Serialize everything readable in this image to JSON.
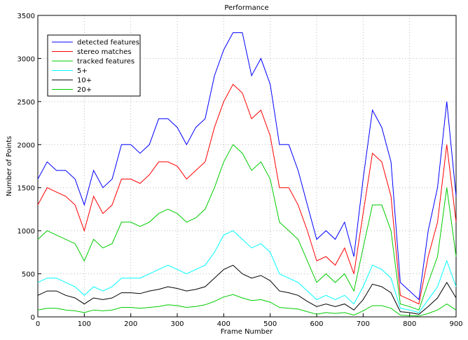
{
  "chart_data": {
    "type": "line",
    "title": "Performance",
    "x_label": "Frame Number",
    "y_label": "Number of Points",
    "x": [
      0,
      20,
      40,
      60,
      80,
      100,
      120,
      140,
      160,
      180,
      200,
      220,
      240,
      260,
      280,
      300,
      320,
      340,
      360,
      380,
      400,
      420,
      440,
      460,
      480,
      500,
      520,
      540,
      560,
      580,
      600,
      620,
      640,
      660,
      680,
      700,
      720,
      740,
      760,
      780,
      800,
      820,
      840,
      860,
      880,
      900
    ],
    "series": [
      {
        "name": "detected features",
        "color": "#0000ff",
        "values": [
          1600,
          1800,
          1700,
          1700,
          1600,
          1300,
          1700,
          1500,
          1600,
          2000,
          2000,
          1900,
          2000,
          2300,
          2300,
          2200,
          2000,
          2200,
          2300,
          2800,
          3100,
          3300,
          3300,
          2800,
          3000,
          2700,
          2000,
          2000,
          1700,
          1300,
          900,
          1000,
          900,
          1100,
          700,
          1600,
          2400,
          2200,
          1800,
          400,
          300,
          200,
          1000,
          1500,
          2500,
          1400
        ]
      },
      {
        "name": "stereo matches",
        "color": "#ff0000",
        "values": [
          1300,
          1500,
          1450,
          1400,
          1300,
          1000,
          1400,
          1200,
          1300,
          1600,
          1600,
          1550,
          1650,
          1800,
          1800,
          1750,
          1600,
          1700,
          1800,
          2200,
          2500,
          2700,
          2600,
          2300,
          2400,
          2100,
          1500,
          1500,
          1300,
          1000,
          650,
          700,
          600,
          800,
          500,
          1200,
          1900,
          1800,
          1400,
          250,
          200,
          150,
          700,
          1100,
          2000,
          1100
        ]
      },
      {
        "name": "tracked features",
        "color": "#00cc00",
        "values": [
          900,
          1000,
          950,
          900,
          850,
          650,
          900,
          800,
          850,
          1100,
          1100,
          1050,
          1100,
          1200,
          1250,
          1200,
          1100,
          1150,
          1250,
          1500,
          1800,
          2000,
          1900,
          1700,
          1800,
          1600,
          1100,
          1000,
          900,
          650,
          400,
          500,
          400,
          500,
          300,
          800,
          1300,
          1300,
          1000,
          150,
          120,
          80,
          400,
          700,
          1500,
          700
        ]
      },
      {
        "name": "5+",
        "color": "#00ffff",
        "values": [
          400,
          450,
          450,
          400,
          350,
          250,
          350,
          300,
          350,
          450,
          450,
          450,
          500,
          550,
          600,
          550,
          500,
          550,
          600,
          750,
          950,
          1000,
          900,
          800,
          850,
          750,
          500,
          450,
          400,
          300,
          200,
          250,
          200,
          250,
          150,
          350,
          600,
          550,
          450,
          100,
          80,
          50,
          200,
          350,
          650,
          350
        ]
      },
      {
        "name": "10+",
        "color": "#000000",
        "values": [
          250,
          300,
          300,
          250,
          220,
          150,
          220,
          200,
          220,
          280,
          280,
          270,
          300,
          320,
          350,
          330,
          300,
          320,
          350,
          450,
          550,
          600,
          500,
          450,
          480,
          420,
          300,
          280,
          250,
          180,
          120,
          150,
          120,
          150,
          80,
          200,
          380,
          350,
          280,
          60,
          50,
          30,
          120,
          220,
          400,
          220
        ]
      },
      {
        "name": "20+",
        "color": "#00cc00",
        "values": [
          80,
          100,
          100,
          80,
          70,
          50,
          80,
          70,
          80,
          110,
          110,
          100,
          110,
          120,
          140,
          130,
          110,
          120,
          140,
          180,
          230,
          260,
          220,
          190,
          200,
          170,
          110,
          100,
          90,
          60,
          30,
          50,
          40,
          50,
          20,
          70,
          130,
          130,
          100,
          20,
          15,
          10,
          40,
          80,
          150,
          80
        ]
      }
    ],
    "xlim": [
      0,
      900
    ],
    "xticks": [
      0,
      100,
      200,
      300,
      400,
      500,
      600,
      700,
      800,
      900
    ],
    "ylim": [
      0,
      3500
    ],
    "yticks": [
      0,
      500,
      1000,
      1500,
      2000,
      2500,
      3000,
      3500
    ],
    "grid": true,
    "legend": "northwest"
  }
}
